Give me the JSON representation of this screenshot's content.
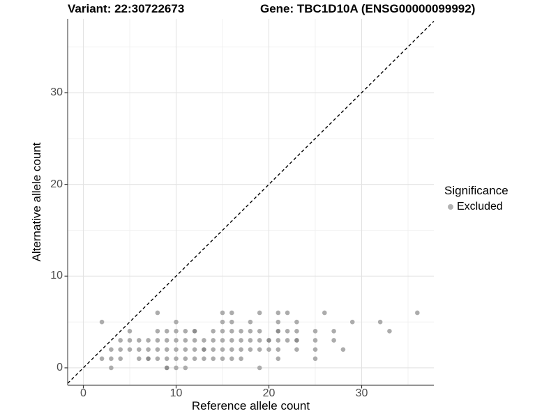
{
  "header": {
    "title_left": "Variant: 22:30722673",
    "title_right": "Gene: TBC1D10A (ENSG00000099992)"
  },
  "chart_data": {
    "type": "scatter",
    "xlabel": "Reference allele count",
    "ylabel": "Alternative allele count",
    "xlim": [
      -1.69,
      37.78
    ],
    "ylim": [
      -1.9,
      38.05
    ],
    "x_ticks": [
      0,
      10,
      20,
      30
    ],
    "y_ticks": [
      0,
      10,
      20,
      30
    ],
    "x_minor_gridlines": [
      5,
      15,
      25,
      35
    ],
    "y_minor_gridlines": [
      5,
      15,
      25,
      35
    ],
    "grid": "on",
    "reference_line": {
      "type": "identity",
      "equation": "y = x",
      "style": "dashed",
      "color": "#000000"
    },
    "legend": {
      "title": "Significance",
      "position": "right",
      "items": [
        {
          "label": "Excluded",
          "color": "#b2b2b2"
        }
      ]
    },
    "colors": {
      "point": "#acacac",
      "point_dark": "#8e8e8e",
      "grid_major": "#e2e2e2",
      "grid_minor": "#f0f0f0",
      "axis_line": "#555555",
      "tick_mark": "#333333",
      "tick_label": "#4d4d4d"
    },
    "series": [
      {
        "name": "Excluded",
        "points": [
          [
            3,
            0
          ],
          [
            9,
            0
          ],
          [
            10,
            0
          ],
          [
            11,
            0
          ],
          [
            19,
            0
          ],
          [
            2,
            1
          ],
          [
            3,
            1
          ],
          [
            4,
            1
          ],
          [
            6,
            1
          ],
          [
            7,
            1
          ],
          [
            8,
            1
          ],
          [
            9,
            1
          ],
          [
            10,
            1
          ],
          [
            11,
            1
          ],
          [
            12,
            1
          ],
          [
            13,
            1
          ],
          [
            14,
            1
          ],
          [
            15,
            1
          ],
          [
            16,
            1
          ],
          [
            17,
            1
          ],
          [
            21,
            1
          ],
          [
            25,
            1
          ],
          [
            3,
            2
          ],
          [
            4,
            2
          ],
          [
            5,
            2
          ],
          [
            6,
            2
          ],
          [
            7,
            2
          ],
          [
            8,
            2
          ],
          [
            9,
            2
          ],
          [
            10,
            2
          ],
          [
            11,
            2
          ],
          [
            12,
            2
          ],
          [
            13,
            2
          ],
          [
            14,
            2
          ],
          [
            15,
            2
          ],
          [
            16,
            2
          ],
          [
            17,
            2
          ],
          [
            18,
            2
          ],
          [
            19,
            2
          ],
          [
            20,
            2
          ],
          [
            21,
            2
          ],
          [
            23,
            2
          ],
          [
            25,
            2
          ],
          [
            28,
            2
          ],
          [
            4,
            3
          ],
          [
            5,
            3
          ],
          [
            6,
            3
          ],
          [
            7,
            3
          ],
          [
            8,
            3
          ],
          [
            9,
            3
          ],
          [
            10,
            3
          ],
          [
            11,
            3
          ],
          [
            12,
            3
          ],
          [
            13,
            3
          ],
          [
            14,
            3
          ],
          [
            15,
            3
          ],
          [
            16,
            3
          ],
          [
            17,
            3
          ],
          [
            18,
            3
          ],
          [
            19,
            3
          ],
          [
            20,
            3
          ],
          [
            21,
            3
          ],
          [
            22,
            3
          ],
          [
            23,
            3
          ],
          [
            25,
            3
          ],
          [
            27,
            3
          ],
          [
            5,
            4
          ],
          [
            8,
            4
          ],
          [
            9,
            4
          ],
          [
            10,
            4
          ],
          [
            11,
            4
          ],
          [
            12,
            4
          ],
          [
            14,
            4
          ],
          [
            15,
            4
          ],
          [
            16,
            4
          ],
          [
            17,
            4
          ],
          [
            18,
            4
          ],
          [
            19,
            4
          ],
          [
            21,
            4
          ],
          [
            22,
            4
          ],
          [
            23,
            4
          ],
          [
            25,
            4
          ],
          [
            27,
            4
          ],
          [
            33,
            4
          ],
          [
            2,
            5
          ],
          [
            10,
            5
          ],
          [
            15,
            5
          ],
          [
            16,
            5
          ],
          [
            18,
            5
          ],
          [
            21,
            5
          ],
          [
            23,
            5
          ],
          [
            29,
            5
          ],
          [
            32,
            5
          ],
          [
            8,
            6
          ],
          [
            15,
            6
          ],
          [
            16,
            6
          ],
          [
            19,
            6
          ],
          [
            21,
            6
          ],
          [
            22,
            6
          ],
          [
            26,
            6
          ],
          [
            36,
            6
          ]
        ],
        "dark_points": [
          [
            9,
            0
          ],
          [
            7,
            1
          ],
          [
            13,
            2
          ],
          [
            12,
            4
          ],
          [
            21,
            4
          ],
          [
            23,
            3
          ],
          [
            20,
            3
          ]
        ]
      }
    ]
  }
}
